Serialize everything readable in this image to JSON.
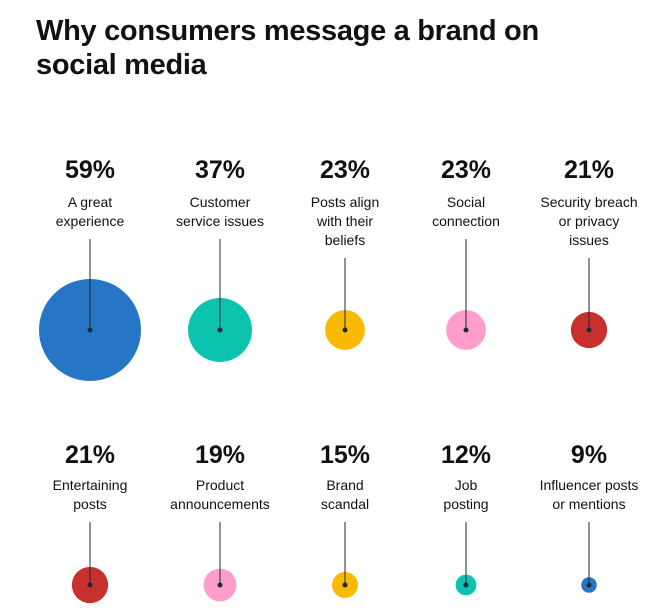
{
  "chart_data": {
    "type": "bubble",
    "title": "Why consumers message a brand on social media",
    "categories": [
      "A great\nexperience",
      "Customer\nservice issues",
      "Posts align\nwith their\nbeliefs",
      "Social\nconnection",
      "Security breach\nor privacy\nissues",
      "Entertaining\nposts",
      "Product\nannouncements",
      "Brand\nscandal",
      "Job\nposting",
      "Influencer posts\nor mentions"
    ],
    "values": [
      59,
      37,
      23,
      23,
      21,
      21,
      19,
      15,
      12,
      9
    ],
    "value_labels": [
      "59%",
      "37%",
      "23%",
      "23%",
      "21%",
      "21%",
      "19%",
      "15%",
      "12%",
      "9%"
    ],
    "colors": [
      "#2775c5",
      "#0cc3b0",
      "#fbb900",
      "#ff9dcb",
      "#c8302f",
      "#c8302f",
      "#ff9dcb",
      "#fbb900",
      "#0cc3b0",
      "#2775c5"
    ]
  }
}
